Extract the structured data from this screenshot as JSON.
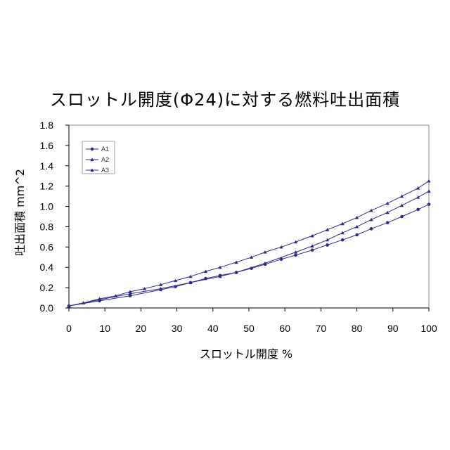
{
  "chart_data": {
    "type": "line",
    "title": "スロットル開度(Φ24)に対する燃料吐出面積",
    "xlabel": "スロットル開度 %",
    "ylabel": "吐出面積 mm^2",
    "xlim": [
      0,
      100
    ],
    "ylim": [
      0,
      1.8
    ],
    "xticks": [
      "0",
      "10",
      "20",
      "30",
      "40",
      "50",
      "60",
      "70",
      "80",
      "90",
      "100"
    ],
    "yticks": [
      "0.0",
      "0.2",
      "0.4",
      "0.6",
      "0.8",
      "1.0",
      "1.2",
      "1.4",
      "1.6",
      "1.8"
    ],
    "grid": false,
    "legend_position": "top-left",
    "colors": {
      "line": "#2b2b8c",
      "axis": "#000000",
      "plot_border": "#888888"
    },
    "series": [
      {
        "name": "A1",
        "marker": "circle",
        "x": [
          0,
          8.5,
          17,
          25.5,
          29.6,
          33.8,
          38,
          42,
          46.5,
          50.7,
          54.5,
          59,
          63,
          67.6,
          71.8,
          76,
          80,
          84,
          88.5,
          92.5,
          97,
          100
        ],
        "y": [
          0.02,
          0.07,
          0.12,
          0.18,
          0.21,
          0.25,
          0.29,
          0.32,
          0.35,
          0.39,
          0.43,
          0.48,
          0.52,
          0.57,
          0.62,
          0.67,
          0.72,
          0.78,
          0.84,
          0.9,
          0.97,
          1.02
        ]
      },
      {
        "name": "A2",
        "marker": "triangle",
        "x": [
          0,
          8.5,
          17,
          25.5,
          33.8,
          42,
          46.5,
          54.5,
          63,
          67.6,
          71.8,
          76,
          80,
          84,
          88.5,
          92.5,
          97,
          100
        ],
        "y": [
          0.02,
          0.08,
          0.14,
          0.19,
          0.25,
          0.31,
          0.35,
          0.44,
          0.55,
          0.61,
          0.67,
          0.74,
          0.8,
          0.87,
          0.94,
          1.01,
          1.09,
          1.15
        ]
      },
      {
        "name": "A3",
        "marker": "triangle",
        "x": [
          0,
          4,
          8.5,
          13,
          17,
          21,
          25.5,
          29.6,
          33.8,
          38,
          42,
          46.5,
          50.7,
          54.5,
          59,
          63,
          67.6,
          71.8,
          76,
          80,
          84,
          88.5,
          92.5,
          97,
          100
        ],
        "y": [
          0.02,
          0.05,
          0.09,
          0.12,
          0.16,
          0.19,
          0.23,
          0.27,
          0.31,
          0.36,
          0.4,
          0.45,
          0.5,
          0.55,
          0.6,
          0.65,
          0.71,
          0.77,
          0.83,
          0.89,
          0.96,
          1.03,
          1.1,
          1.18,
          1.25
        ]
      }
    ]
  }
}
